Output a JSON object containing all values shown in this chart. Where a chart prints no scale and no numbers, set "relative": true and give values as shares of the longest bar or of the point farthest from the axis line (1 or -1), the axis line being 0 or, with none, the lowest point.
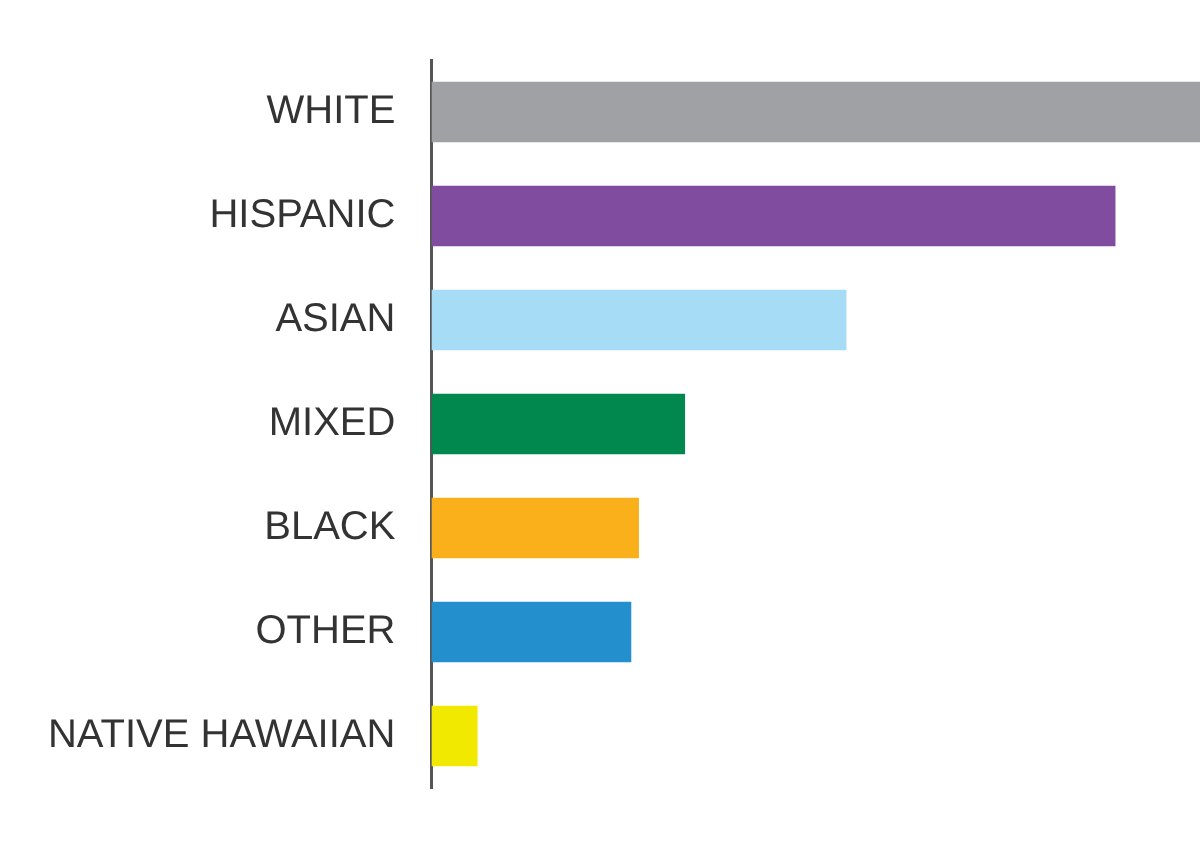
{
  "chart_data": {
    "type": "bar",
    "orientation": "horizontal",
    "relative": true,
    "categories": [
      "WHITE",
      "HISPANIC",
      "ASIAN",
      "MIXED",
      "BLACK",
      "OTHER",
      "NATIVE HAWAIIAN"
    ],
    "values": [
      1,
      0.89,
      0.54,
      0.33,
      0.27,
      0.26,
      0.06
    ],
    "colors": [
      "#a0a1a5",
      "#7f4c9f",
      "#a6dcf5",
      "#00884f",
      "#f9b01b",
      "#2390cd",
      "#f2e900"
    ]
  }
}
